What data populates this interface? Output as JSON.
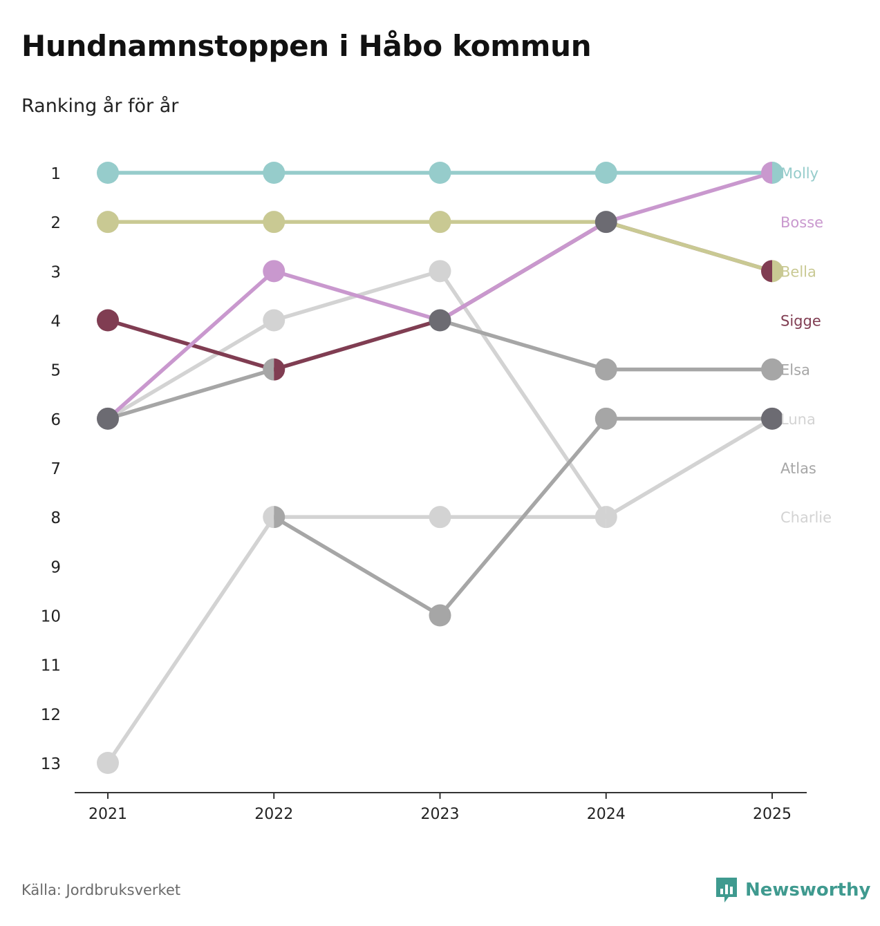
{
  "header": {
    "title": "Hundnamnstoppen i Håbo kommun",
    "subtitle": "Ranking år för år"
  },
  "footer": {
    "source": "Källa: Jordbruksverket",
    "brand": "Newsworthy",
    "brand_icon": "bar-chart-speech-bubble-icon",
    "brand_color": "#3f9a8f"
  },
  "chart_data": {
    "type": "line",
    "title": "Hundnamnstoppen i Håbo kommun",
    "subtitle": "Ranking år för år",
    "xlabel": "",
    "ylabel": "",
    "categories": [
      "2021",
      "2022",
      "2023",
      "2024",
      "2025"
    ],
    "y_ticks": [
      "1",
      "2",
      "3",
      "4",
      "5",
      "6",
      "7",
      "8",
      "9",
      "10",
      "11",
      "12",
      "13"
    ],
    "ylim": [
      1,
      13
    ],
    "y_inverted": true,
    "grid": false,
    "series": [
      {
        "name": "Charlie",
        "color": "#d3d3d3",
        "values": [
          13,
          8,
          8,
          8,
          6
        ]
      },
      {
        "name": "Luna",
        "color": "#d3d3d3",
        "values": [
          6,
          4,
          3,
          8,
          6
        ]
      },
      {
        "name": "Atlas",
        "color": "#a6a6a6",
        "values": [
          null,
          8,
          10,
          6,
          6
        ]
      },
      {
        "name": "Elsa",
        "color": "#a6a6a6",
        "values": [
          6,
          5,
          4,
          5,
          5
        ]
      },
      {
        "name": "Sigge",
        "color": "#803d52",
        "values": [
          4,
          5,
          4,
          2,
          3
        ]
      },
      {
        "name": "Bosse",
        "color": "#c998ce",
        "values": [
          6,
          3,
          4,
          2,
          1
        ]
      },
      {
        "name": "Bella",
        "color": "#c9c993",
        "values": [
          2,
          2,
          2,
          2,
          3
        ]
      },
      {
        "name": "Molly",
        "color": "#96cccb",
        "values": [
          1,
          1,
          1,
          1,
          1
        ]
      }
    ],
    "end_labels": [
      {
        "name": "Molly",
        "rank": 1,
        "color": "#96cccb"
      },
      {
        "name": "Bosse",
        "rank": 2,
        "color": "#c998ce"
      },
      {
        "name": "Bella",
        "rank": 3,
        "color": "#c9c993"
      },
      {
        "name": "Sigge",
        "rank": 4,
        "color": "#803d52"
      },
      {
        "name": "Elsa",
        "rank": 5,
        "color": "#a6a6a6"
      },
      {
        "name": "Luna",
        "rank": 6,
        "color": "#d3d3d3"
      },
      {
        "name": "Atlas",
        "rank": 7,
        "color": "#a6a6a6"
      },
      {
        "name": "Charlie",
        "rank": 8,
        "color": "#d3d3d3"
      }
    ],
    "tie_color": "#6c6b72"
  }
}
